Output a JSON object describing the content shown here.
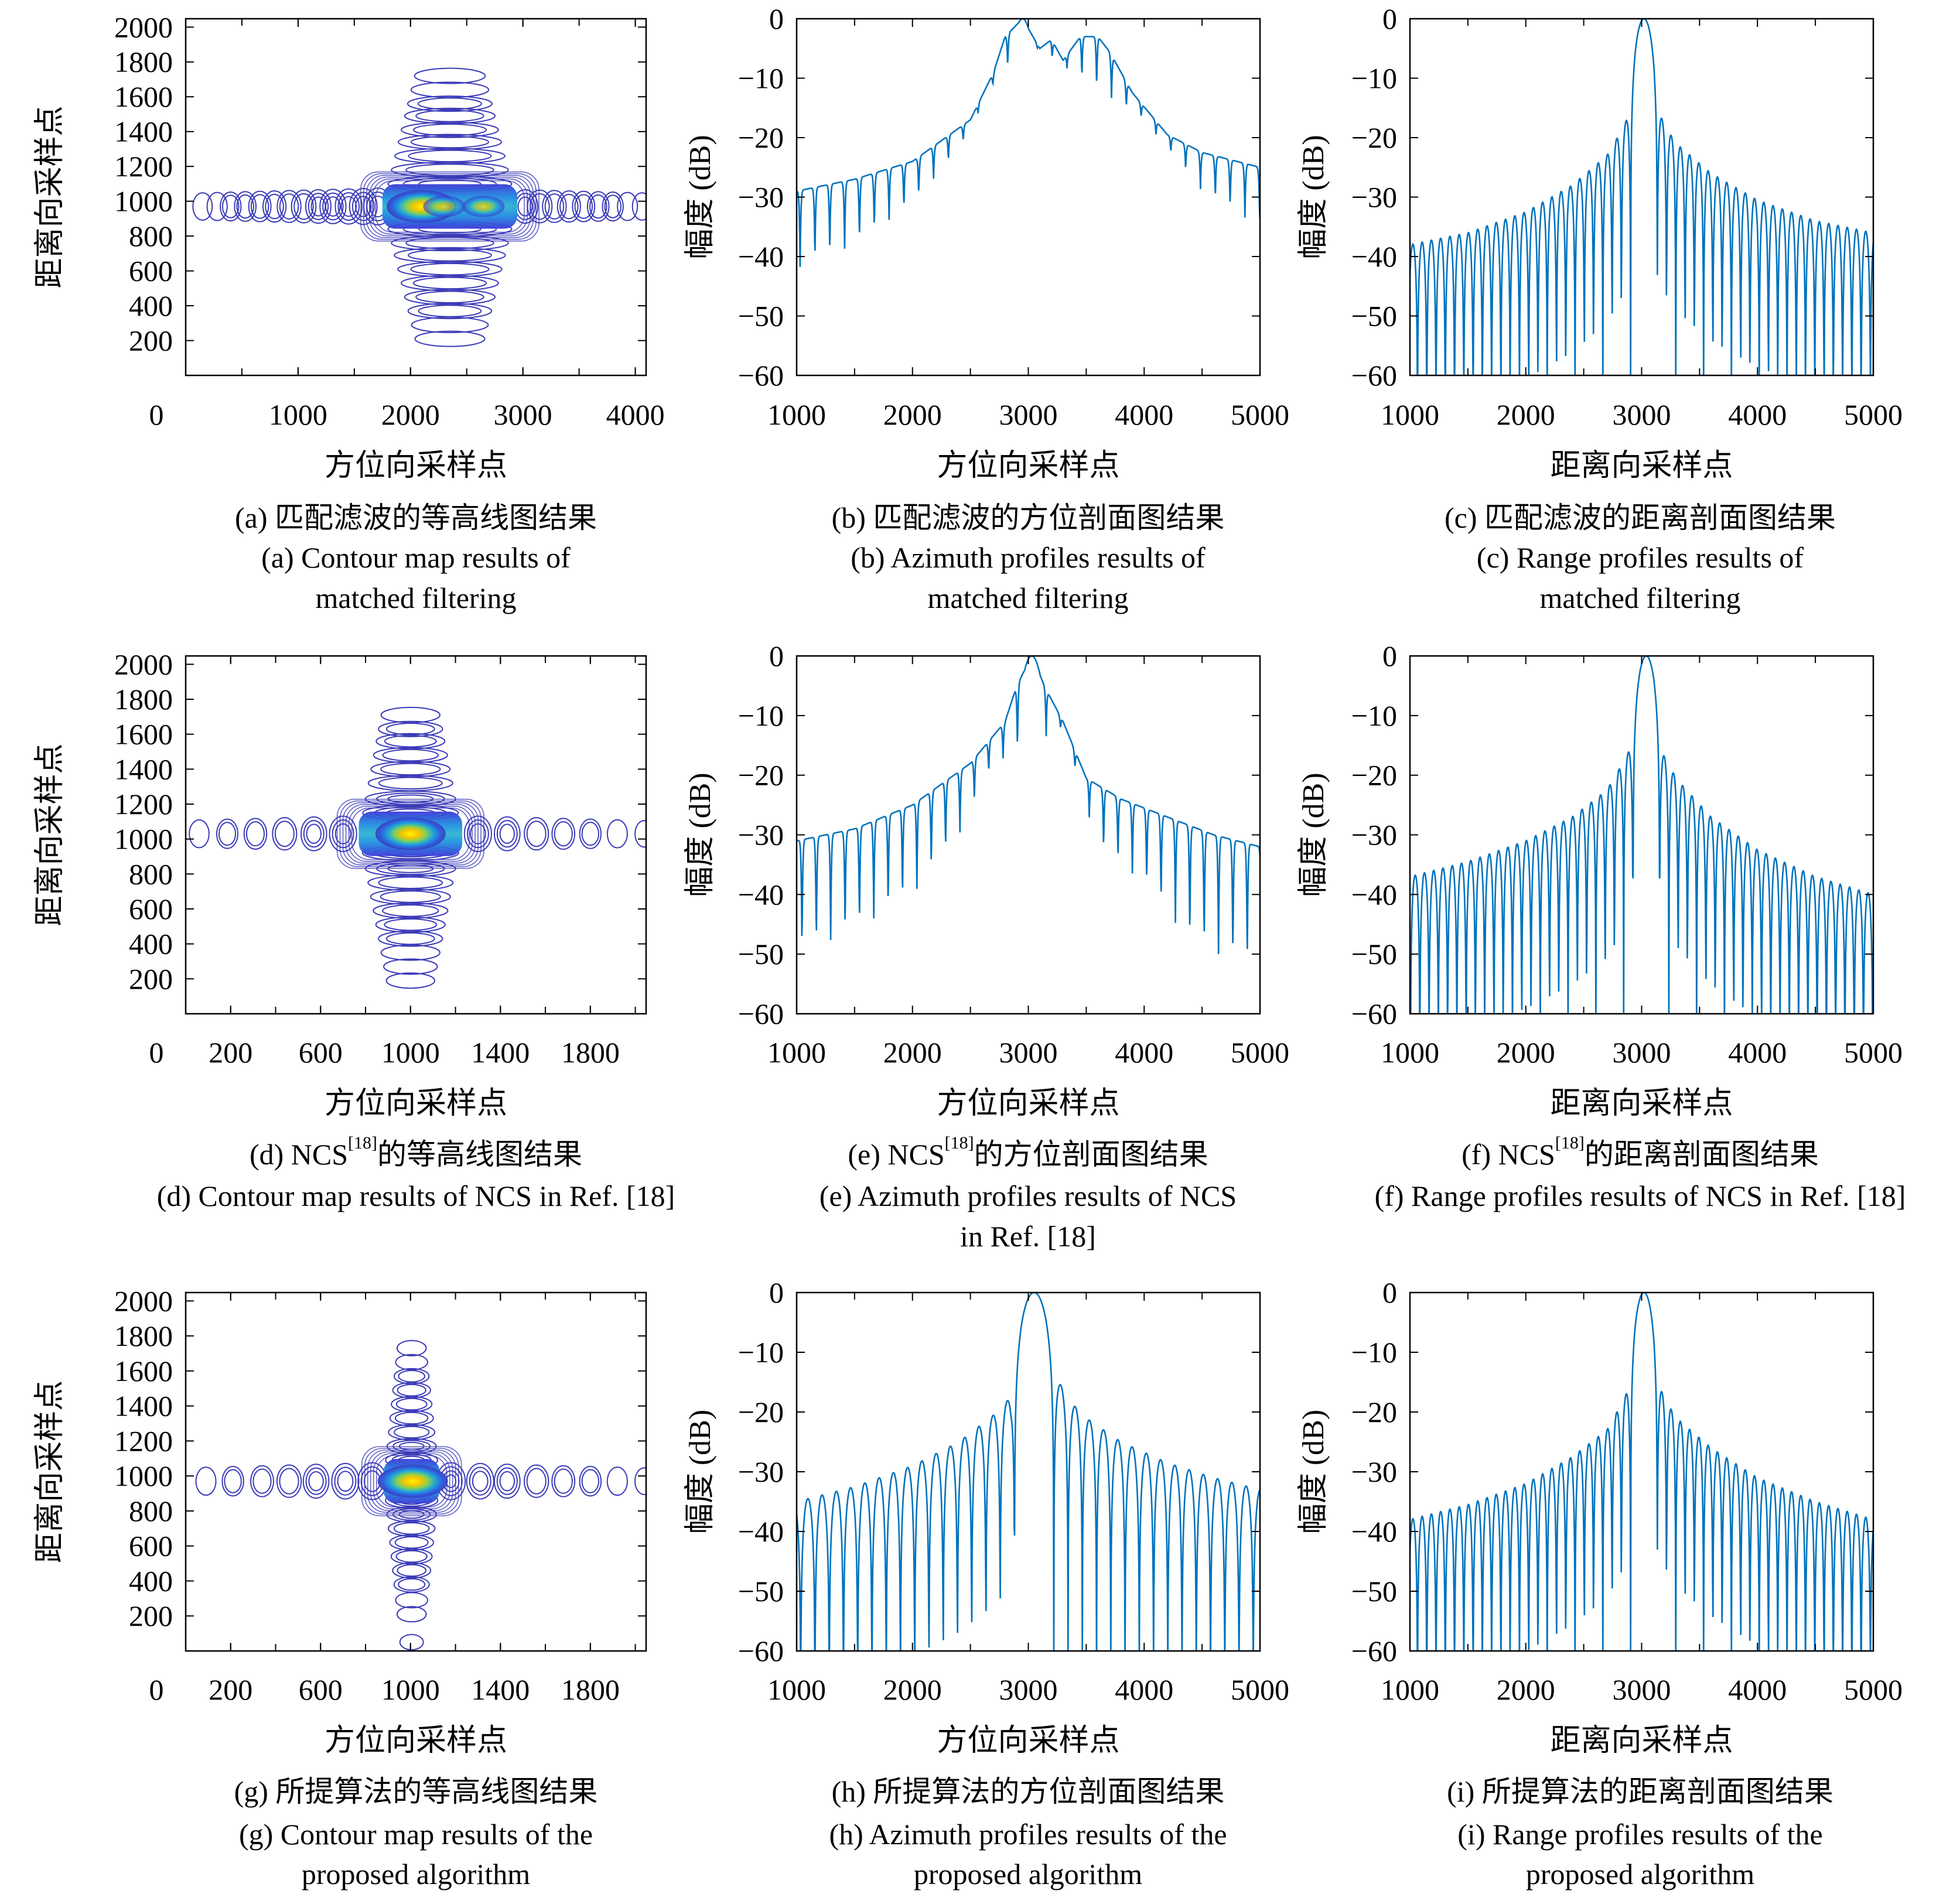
{
  "figure": {
    "panels": [
      {
        "id": "a",
        "caption_zh_prefix": "(a) ",
        "caption_zh": "匹配滤波的等高线图结果",
        "caption_zh_sup": "",
        "caption_zh_suffix": "",
        "caption_en": [
          "(a) Contour map results of",
          "matched filtering"
        ]
      },
      {
        "id": "b",
        "caption_zh_prefix": "(b) ",
        "caption_zh": "匹配滤波的方位剖面图结果",
        "caption_zh_sup": "",
        "caption_zh_suffix": "",
        "caption_en": [
          "(b) Azimuth profiles results of",
          "matched filtering"
        ]
      },
      {
        "id": "c",
        "caption_zh_prefix": "(c) ",
        "caption_zh": "匹配滤波的距离剖面图结果",
        "caption_zh_sup": "",
        "caption_zh_suffix": "",
        "caption_en": [
          "(c) Range profiles results of",
          "matched filtering"
        ]
      },
      {
        "id": "d",
        "caption_zh_prefix": "(d) NCS",
        "caption_zh": "",
        "caption_zh_sup": "[18]",
        "caption_zh_suffix": "的等高线图结果",
        "caption_en": [
          "(d) Contour map results of NCS in Ref. [18]"
        ]
      },
      {
        "id": "e",
        "caption_zh_prefix": "(e) NCS",
        "caption_zh": "",
        "caption_zh_sup": "[18]",
        "caption_zh_suffix": "的方位剖面图结果",
        "caption_en": [
          "(e) Azimuth profiles results of NCS",
          "in Ref. [18]"
        ]
      },
      {
        "id": "f",
        "caption_zh_prefix": "(f) NCS",
        "caption_zh": "",
        "caption_zh_sup": "[18]",
        "caption_zh_suffix": "的距离剖面图结果",
        "caption_en": [
          "(f) Range profiles results of NCS in Ref. [18]"
        ]
      },
      {
        "id": "g",
        "caption_zh_prefix": "(g) ",
        "caption_zh": "所提算法的等高线图结果",
        "caption_zh_sup": "",
        "caption_zh_suffix": "",
        "caption_en": [
          "(g) Contour map results of the",
          "proposed algorithm"
        ]
      },
      {
        "id": "h",
        "caption_zh_prefix": "(h) ",
        "caption_zh": "所提算法的方位剖面图结果",
        "caption_zh_sup": "",
        "caption_zh_suffix": "",
        "caption_en": [
          "(h) Azimuth profiles results of the",
          "proposed algorithm"
        ]
      },
      {
        "id": "i",
        "caption_zh_prefix": "(i) ",
        "caption_zh": "所提算法的距离剖面图结果",
        "caption_zh_sup": "",
        "caption_zh_suffix": "",
        "caption_en": [
          "(i) Range profiles results of the",
          "proposed algorithm"
        ]
      }
    ]
  },
  "colors": {
    "line": "#0072bd",
    "contour_outer": "#3b3bb8",
    "contour_peak": "#f5d800",
    "axis": "#000000"
  },
  "chart_data": [
    {
      "panel": "a",
      "type": "heatmap",
      "subtype": "contour",
      "title": "",
      "xlabel": "方位向采样点",
      "ylabel": "距离向采样点",
      "xticks": [
        "0",
        "1000",
        "2000",
        "3000",
        "4000"
      ],
      "yticks": [
        "200",
        "400",
        "600",
        "800",
        "1000",
        "1200",
        "1400",
        "1600",
        "1800",
        "2000"
      ],
      "xlim": [
        0,
        4096
      ],
      "ylim": [
        0,
        2048
      ],
      "peak": {
        "x": 2100,
        "y": 970
      },
      "mainlobe_extent_x": [
        1750,
        2950
      ],
      "range_sidelobes_y": [
        1720,
        1640,
        1560,
        1490,
        1410,
        1340,
        1260,
        1180,
        1100,
        840,
        760,
        690,
        610,
        530,
        450,
        370,
        290,
        210
      ],
      "azimuth_sidelobes_x": [
        150,
        280,
        400,
        530,
        660,
        790,
        920,
        1050,
        1180,
        1310,
        1450,
        1580,
        1710,
        3020,
        3150,
        3280,
        3410,
        3540,
        3670,
        3800,
        3930,
        4060
      ],
      "secondary_peaks_x": [
        2300,
        2650
      ]
    },
    {
      "panel": "b",
      "type": "line",
      "title": "",
      "xlabel": "方位向采样点",
      "ylabel": "幅度 (dB)",
      "xticks": [
        "1000",
        "2000",
        "3000",
        "4000",
        "5000"
      ],
      "yticks": [
        "0",
        "-10",
        "-20",
        "-30",
        "-40",
        "-50",
        "-60"
      ],
      "xlim": [
        1000,
        5000
      ],
      "ylim": [
        -60,
        0
      ],
      "peak_x": 2950,
      "sidelobe_spacing": 128,
      "envelope": {
        "x": [
          1000,
          1500,
          2000,
          2500,
          2700,
          2800,
          2950,
          3100,
          3200,
          3300,
          3450,
          3600,
          3700,
          3900,
          4200,
          4500,
          5000
        ],
        "y": [
          -29,
          -27,
          -24,
          -17,
          -9,
          -3,
          0,
          -5,
          -3.5,
          -7,
          -3,
          -3,
          -5.5,
          -12.5,
          -19.5,
          -22.5,
          -25
        ]
      },
      "nulls_depth": {
        "x": [
          1000,
          1500,
          2000,
          2400,
          2700,
          3000,
          4000,
          4500,
          5000
        ],
        "y": [
          -42,
          -38,
          -31,
          -22,
          -11,
          -4,
          -17,
          -29,
          -35
        ]
      }
    },
    {
      "panel": "c",
      "type": "line",
      "title": "",
      "xlabel": "距离向采样点",
      "ylabel": "幅度 (dB)",
      "xticks": [
        "1000",
        "2000",
        "3000",
        "4000",
        "5000"
      ],
      "yticks": [
        "0",
        "-10",
        "-20",
        "-30",
        "-40",
        "-50",
        "-60"
      ],
      "xlim": [
        1000,
        5000
      ],
      "ylim": [
        -60,
        0
      ],
      "peak_x": 3020,
      "mainlobe_halfwidth": 115,
      "sidelobe_spacing": 80,
      "first_sidelobe_db": -13.3,
      "envelope_left": {
        "x": [
          1000,
          1500,
          2000,
          2400,
          2700,
          2850,
          2940
        ],
        "y": [
          -38,
          -36,
          -32.5,
          -28,
          -23,
          -18,
          -13.3
        ]
      },
      "envelope_right": {
        "x": [
          3100,
          3200,
          3300,
          3600,
          4000,
          4500,
          5000
        ],
        "y": [
          -13.3,
          -18,
          -21,
          -26,
          -30.5,
          -34,
          -36
        ]
      }
    },
    {
      "panel": "d",
      "type": "heatmap",
      "subtype": "contour",
      "title": "",
      "xlabel": "方位向采样点",
      "ylabel": "距离向采样点",
      "xticks": [
        "0",
        "200",
        "600",
        "1000",
        "1400",
        "1800"
      ],
      "yticks": [
        "200",
        "400",
        "600",
        "800",
        "1000",
        "1200",
        "1400",
        "1600",
        "1800",
        "2000"
      ],
      "xlim": [
        0,
        2048
      ],
      "ylim": [
        0,
        2048
      ],
      "peak": {
        "x": 1000,
        "y": 1030
      },
      "mainlobe_extent_x": [
        770,
        1230
      ],
      "range_sidelobes_y": [
        1710,
        1630,
        1560,
        1480,
        1400,
        1320,
        1230,
        1150,
        920,
        830,
        750,
        670,
        590,
        510,
        430,
        350,
        270,
        190
      ],
      "azimuth_sidelobes_x": [
        60,
        185,
        310,
        440,
        570,
        700,
        1300,
        1430,
        1560,
        1680,
        1800,
        1920,
        2040
      ]
    },
    {
      "panel": "e",
      "type": "line",
      "title": "",
      "xlabel": "方位向采样点",
      "ylabel": "幅度 (dB)",
      "xticks": [
        "1000",
        "2000",
        "3000",
        "4000",
        "5000"
      ],
      "yticks": [
        "0",
        "-10",
        "-20",
        "-30",
        "-40",
        "-50",
        "-60"
      ],
      "xlim": [
        1000,
        5000
      ],
      "ylim": [
        -60,
        0
      ],
      "peak_x": 3030,
      "sidelobe_spacing": 124,
      "envelope": {
        "x": [
          1000,
          1500,
          2000,
          2500,
          2800,
          2900,
          3030,
          3150,
          3300,
          3500,
          3800,
          4200,
          4600,
          5000
        ],
        "y": [
          -31,
          -29,
          -25,
          -18,
          -11,
          -5,
          0,
          -5.5,
          -11,
          -20.5,
          -24,
          -27,
          -30,
          -32
        ]
      },
      "nulls_depth": {
        "x": [
          1000,
          1500,
          2000,
          2400,
          2700,
          3300,
          3600,
          4000,
          4400,
          5000
        ],
        "y": [
          -50,
          -46,
          -40,
          -30,
          -18,
          -12,
          -32,
          -38,
          -48,
          -53
        ]
      }
    },
    {
      "panel": "f",
      "type": "line",
      "title": "",
      "xlabel": "距离向采样点",
      "ylabel": "幅度 (dB)",
      "xticks": [
        "1000",
        "2000",
        "3000",
        "4000",
        "5000"
      ],
      "yticks": [
        "0",
        "-10",
        "-20",
        "-30",
        "-40",
        "-50",
        "-60"
      ],
      "xlim": [
        1000,
        5000
      ],
      "ylim": [
        -60,
        0
      ],
      "peak_x": 3040,
      "mainlobe_halfwidth": 115,
      "sidelobe_spacing": 80,
      "first_sidelobe_db": -13.3,
      "envelope_left": {
        "x": [
          1000,
          1500,
          2000,
          2400,
          2700,
          2850,
          2960
        ],
        "y": [
          -37,
          -34.5,
          -31,
          -27,
          -22.5,
          -17.5,
          -13.3
        ]
      },
      "envelope_right": {
        "x": [
          3120,
          3220,
          3320,
          3600,
          4000,
          4500,
          5000
        ],
        "y": [
          -13.3,
          -18,
          -21,
          -27,
          -32.5,
          -37,
          -40
        ]
      }
    },
    {
      "panel": "g",
      "type": "heatmap",
      "subtype": "contour",
      "title": "",
      "xlabel": "方位向采样点",
      "ylabel": "距离向采样点",
      "xticks": [
        "0",
        "200",
        "600",
        "1000",
        "1400",
        "1800"
      ],
      "yticks": [
        "200",
        "400",
        "600",
        "800",
        "1000",
        "1200",
        "1400",
        "1600",
        "1800",
        "2000"
      ],
      "xlim": [
        0,
        2048
      ],
      "ylim": [
        0,
        2048
      ],
      "peak": {
        "x": 1010,
        "y": 970
      },
      "mainlobe_extent_x": [
        880,
        1130
      ],
      "range_sidelobes_y": [
        1730,
        1650,
        1570,
        1490,
        1410,
        1330,
        1250,
        1170,
        1090,
        860,
        780,
        700,
        620,
        540,
        460,
        380,
        290,
        210,
        50
      ],
      "azimuth_sidelobes_x": [
        90,
        210,
        340,
        460,
        580,
        710,
        830,
        1180,
        1310,
        1430,
        1560,
        1680,
        1800,
        1920,
        2040
      ]
    },
    {
      "panel": "h",
      "type": "line",
      "title": "",
      "xlabel": "方位向采样点",
      "ylabel": "幅度 (dB)",
      "xticks": [
        "1000",
        "2000",
        "3000",
        "4000",
        "5000"
      ],
      "yticks": [
        "0",
        "-10",
        "-20",
        "-30",
        "-40",
        "-50",
        "-60"
      ],
      "xlim": [
        1000,
        5000
      ],
      "ylim": [
        -60,
        0
      ],
      "peak_x": 3050,
      "mainlobe_halfwidth": 170,
      "sidelobe_spacing": 123,
      "first_sidelobe_db": -13.2,
      "envelope_left": {
        "x": [
          1000,
          1500,
          2000,
          2400,
          2700,
          2850,
          2880
        ],
        "y": [
          -35,
          -32.5,
          -29,
          -25,
          -20.5,
          -17.5,
          -13.2
        ]
      },
      "envelope_right": {
        "x": [
          3220,
          3340,
          3500,
          3800,
          4200,
          4600,
          5000
        ],
        "y": [
          -13.2,
          -17.8,
          -21,
          -25,
          -28.5,
          -31,
          -33
        ]
      }
    },
    {
      "panel": "i",
      "type": "line",
      "title": "",
      "xlabel": "距离向采样点",
      "ylabel": "幅度 (dB)",
      "xticks": [
        "1000",
        "2000",
        "3000",
        "4000",
        "5000"
      ],
      "yticks": [
        "0",
        "-10",
        "-20",
        "-30",
        "-40",
        "-50",
        "-60"
      ],
      "xlim": [
        1000,
        5000
      ],
      "ylim": [
        -60,
        0
      ],
      "peak_x": 3020,
      "mainlobe_halfwidth": 115,
      "sidelobe_spacing": 80,
      "first_sidelobe_db": -13.3,
      "envelope_left": {
        "x": [
          1000,
          1500,
          2000,
          2400,
          2700,
          2850,
          2940
        ],
        "y": [
          -38,
          -35.5,
          -32,
          -27.5,
          -23,
          -17.8,
          -13.3
        ]
      },
      "envelope_right": {
        "x": [
          3100,
          3200,
          3300,
          3600,
          4000,
          4500,
          5000
        ],
        "y": [
          -13.3,
          -17.8,
          -21,
          -26,
          -31,
          -35,
          -38
        ]
      }
    }
  ]
}
